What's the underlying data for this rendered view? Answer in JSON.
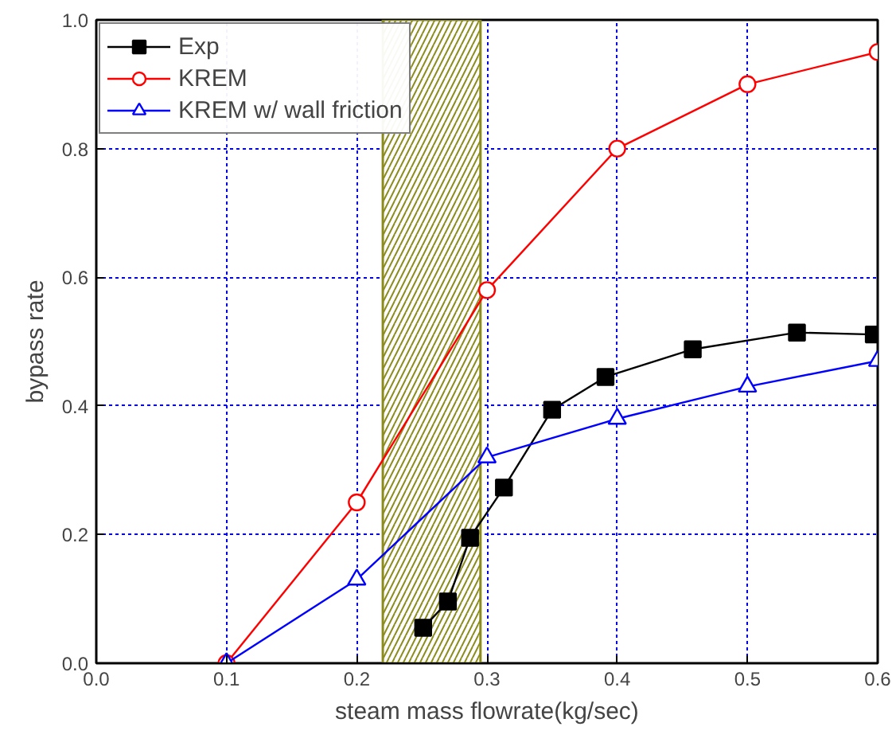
{
  "chart_data": {
    "type": "line",
    "xlabel": "steam mass flowrate(kg/sec)",
    "ylabel": "bypass rate",
    "xlim": [
      0,
      0.6
    ],
    "ylim": [
      0,
      1.0
    ],
    "xticks": [
      {
        "value": 0,
        "label": "0.0"
      },
      0.1,
      0.2,
      0.3,
      0.4,
      0.5,
      0.6
    ],
    "yticks": [
      {
        "value": 0,
        "label": "0.0"
      },
      0.2,
      0.4,
      0.6,
      0.8,
      {
        "value": 1,
        "label": "1.0"
      }
    ],
    "grid": true,
    "legend": "top left",
    "line_style": "solid",
    "bands": [
      {
        "axis": "x",
        "from": 0.22,
        "to": 0.295,
        "color": "#8c8c1e"
      }
    ],
    "series": [
      {
        "name": "Exp",
        "color": "#000000",
        "marker": "square",
        "x": [
          0.251,
          0.27,
          0.287,
          0.313,
          0.35,
          0.391,
          0.458,
          0.538,
          0.597
        ],
        "values": [
          0.055,
          0.096,
          0.195,
          0.273,
          0.394,
          0.445,
          0.488,
          0.514,
          0.511
        ]
      },
      {
        "name": "KREM",
        "color": "#ff0000",
        "marker": "circle",
        "x": [
          0.1,
          0.2,
          0.3,
          0.4,
          0.5,
          0.6
        ],
        "values": [
          0,
          0.25,
          0.58,
          0.8,
          0.9,
          0.95
        ]
      },
      {
        "name": "KREM w/ wall friction",
        "color": "#0000ff",
        "marker": "triangle",
        "x": [
          0.1,
          0.2,
          0.3,
          0.4,
          0.5,
          0.6
        ],
        "values": [
          0,
          0.13,
          0.32,
          0.38,
          0.43,
          0.47
        ]
      }
    ]
  }
}
